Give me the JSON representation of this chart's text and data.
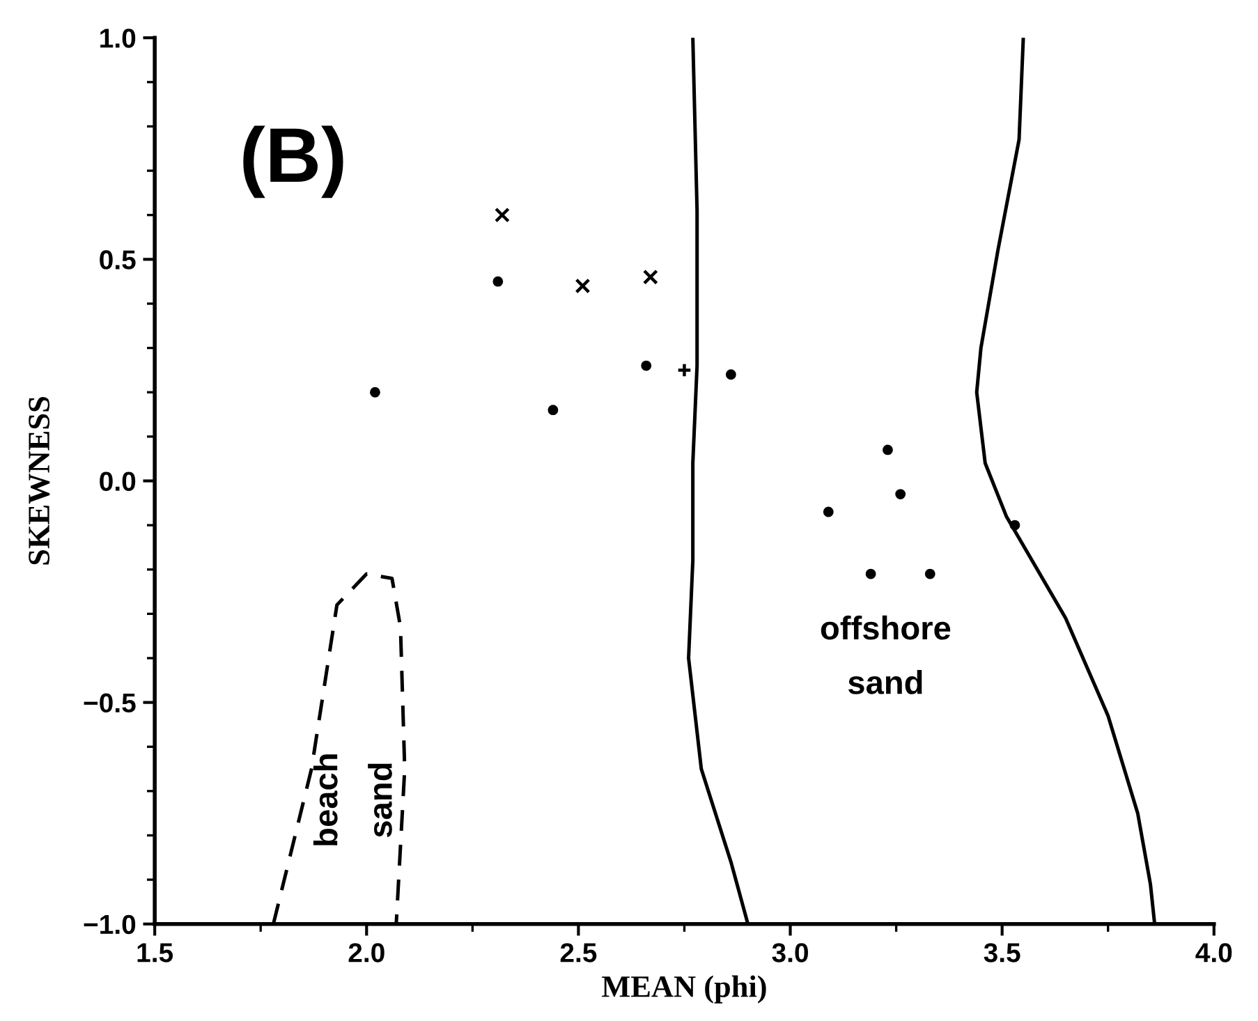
{
  "chart_data": {
    "type": "scatter",
    "xlabel": "MEAN (phi)",
    "ylabel": "SKEWNESS",
    "xlim": [
      1.5,
      4.0
    ],
    "ylim": [
      -1.0,
      1.0
    ],
    "xticks": [
      1.5,
      {
        "value": 2,
        "label": "2.0"
      },
      2.5,
      {
        "value": 3,
        "label": "3.0"
      },
      3.5,
      {
        "value": 4,
        "label": "4.0"
      }
    ],
    "yticks": [
      {
        "value": -1,
        "label": "−1.0"
      },
      -0.5,
      {
        "value": 0,
        "label": "0.0"
      },
      0.5,
      {
        "value": 1,
        "label": "1.0"
      }
    ],
    "grid": false,
    "legend": false,
    "annotations": [
      "(B)",
      "offshore\nsand",
      "beach\nsand"
    ],
    "series": [
      {
        "marker": "circle",
        "color": "#000000",
        "x": [
          2.31,
          2.02,
          2.66,
          2.86,
          2.44,
          3.23,
          3.26,
          3.09,
          3.19,
          3.33,
          3.53
        ],
        "values": [
          0.45,
          0.2,
          0.26,
          0.24,
          0.16,
          0.07,
          -0.03,
          -0.07,
          -0.21,
          -0.21,
          -0.1
        ]
      },
      {
        "marker": "cross",
        "color": "#000000",
        "x": [
          2.32,
          2.51,
          2.67
        ],
        "values": [
          0.6,
          0.44,
          0.46
        ]
      },
      {
        "marker": "plus",
        "color": "#000000",
        "x": [
          2.75
        ],
        "values": [
          0.25
        ]
      },
      {
        "type": "line",
        "line_style": "solid",
        "marker": "none",
        "color": "#000000",
        "x": [
          2.77,
          2.78,
          2.78,
          2.77,
          2.77,
          2.76,
          2.79,
          2.86,
          2.9
        ],
        "values": [
          1.0,
          0.61,
          0.26,
          0.04,
          -0.18,
          -0.4,
          -0.65,
          -0.86,
          -1.0
        ]
      },
      {
        "type": "line",
        "line_style": "solid",
        "marker": "none",
        "color": "#000000",
        "x": [
          3.55,
          3.54,
          3.49,
          3.45,
          3.44,
          3.46,
          3.51,
          3.65,
          3.75,
          3.82,
          3.85,
          3.86
        ],
        "values": [
          1.0,
          0.77,
          0.52,
          0.3,
          0.2,
          0.04,
          -0.08,
          -0.31,
          -0.53,
          -0.75,
          -0.91,
          -1.0
        ]
      },
      {
        "type": "line",
        "line_style": "dashed",
        "marker": "none",
        "color": "#000000",
        "x": [
          1.78,
          1.87,
          1.93,
          2.0,
          2.06,
          2.08,
          2.09,
          2.07
        ],
        "values": [
          -1.0,
          -0.65,
          -0.28,
          -0.21,
          -0.22,
          -0.33,
          -0.65,
          -1.0
        ]
      }
    ]
  }
}
